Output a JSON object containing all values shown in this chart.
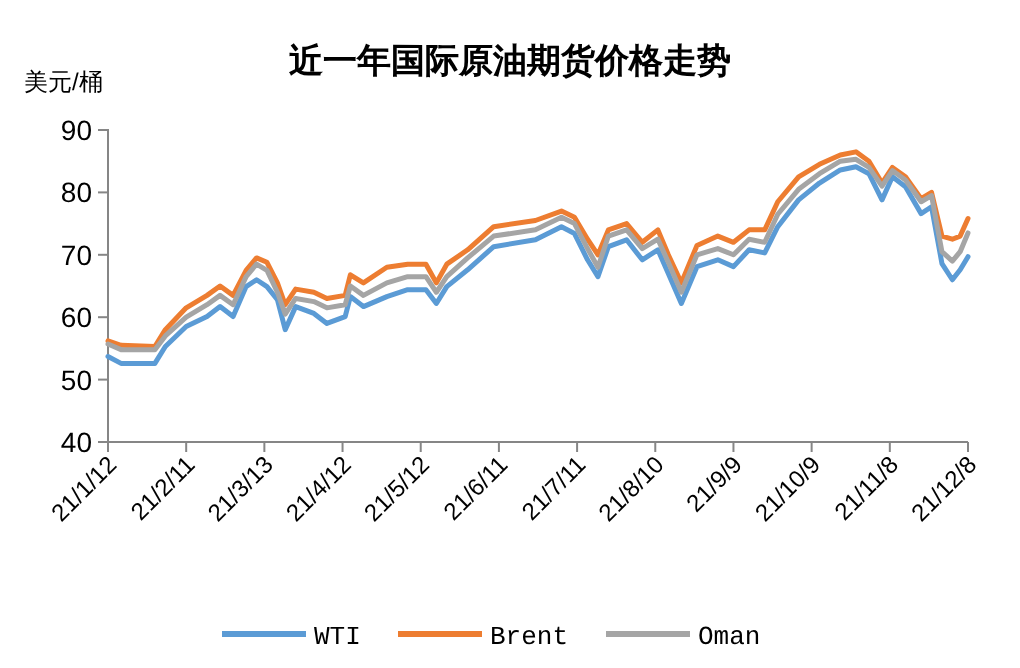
{
  "chart_data": {
    "type": "line",
    "title": "近一年国际原油期货价格走势",
    "ylabel": "美元/桶",
    "x": [
      "--01-12",
      "--01-17",
      "--01-30",
      "--02-03",
      "--02-11",
      "--02-19",
      "--02-24",
      "--03-01",
      "--03-06",
      "--03-10",
      "--03-14",
      "--03-18",
      "--03-21",
      "--03-25",
      "--04-01",
      "--04-06",
      "--04-13",
      "--04-15",
      "--04-20",
      "--04-29",
      "--05-07",
      "--05-14",
      "--05-18",
      "--05-22",
      "--05-30",
      "--06-09",
      "--06-25",
      "--07-05",
      "--07-10",
      "--07-15",
      "--07-19",
      "--07-23",
      "--07-30",
      "--08-05",
      "--08-11",
      "--08-15",
      "--08-20",
      "--08-26",
      "--09-03",
      "--09-09",
      "--09-15",
      "--09-21",
      "--09-26",
      "--10-04",
      "--10-12",
      "--10-20",
      "--10-26",
      "--10-31",
      "--11-05",
      "--11-09",
      "--11-14",
      "--11-20",
      "--11-24",
      "--11-28",
      "--12-02",
      "--12-05",
      "--12-08"
    ],
    "series": [
      {
        "name": "WTI",
        "color": "#5b9bd5",
        "values": [
          53.7,
          52.6,
          52.6,
          55.3,
          58.5,
          60.1,
          61.7,
          60.1,
          64.9,
          66,
          64.9,
          62.8,
          58,
          61.7,
          60.6,
          59,
          60.1,
          63.3,
          61.7,
          63.3,
          64.4,
          64.4,
          62.2,
          64.9,
          67.6,
          71.3,
          72.4,
          74.5,
          73.4,
          69.2,
          66.5,
          71.3,
          72.4,
          69.2,
          70.8,
          67,
          62.2,
          68.1,
          69.2,
          68.1,
          70.8,
          70.3,
          74.5,
          78.8,
          81.5,
          83.6,
          84.1,
          83,
          78.8,
          82.5,
          80.9,
          76.6,
          77.7,
          68.6,
          66,
          67.6,
          69.7
        ]
      },
      {
        "name": "Brent",
        "color": "#ed7d31",
        "values": [
          56.2,
          55.5,
          55.3,
          58,
          61.5,
          63.5,
          65,
          63.5,
          67.5,
          69.5,
          68.8,
          65.5,
          62,
          64.5,
          64,
          63,
          63.5,
          66.8,
          65.5,
          68,
          68.5,
          68.5,
          65.5,
          68.5,
          70.8,
          74.5,
          75.5,
          77,
          76,
          72.5,
          70,
          74,
          75,
          72,
          74,
          70,
          65.5,
          71.5,
          73,
          72,
          74,
          74,
          78.5,
          82.5,
          84.5,
          86,
          86.5,
          85,
          81.5,
          84,
          82.5,
          79,
          80,
          73,
          72.5,
          73,
          75.8
        ]
      },
      {
        "name": "Oman",
        "color": "#a5a5a5",
        "values": [
          55.7,
          54.8,
          54.8,
          57,
          60,
          62,
          63.5,
          62,
          66.5,
          68.5,
          67.5,
          64,
          60.5,
          63,
          62.5,
          61.5,
          62,
          65,
          63.5,
          65.5,
          66.5,
          66.5,
          64,
          66.5,
          69.5,
          73,
          74,
          76,
          75,
          71,
          68,
          73,
          74,
          71,
          72.5,
          68.8,
          64,
          70,
          71,
          70,
          72.5,
          72,
          76.5,
          80.5,
          83,
          85,
          85.3,
          84,
          81,
          83.5,
          82,
          78.5,
          79.5,
          70.5,
          69,
          70.5,
          73.5
        ]
      }
    ],
    "xlim": [
      "--01-12",
      "--12-08"
    ],
    "xticks": [
      {
        "value": "--01-12",
        "label": "21/1/12"
      },
      {
        "value": "--02-11",
        "label": "21/2/11"
      },
      {
        "value": "--03-13",
        "label": "21/3/13"
      },
      {
        "value": "--04-12",
        "label": "21/4/12"
      },
      {
        "value": "--05-12",
        "label": "21/5/12"
      },
      {
        "value": "--06-11",
        "label": "21/6/11"
      },
      {
        "value": "--07-11",
        "label": "21/7/11"
      },
      {
        "value": "--08-10",
        "label": "21/8/10"
      },
      {
        "value": "--09-09",
        "label": "21/9/9"
      },
      {
        "value": "--10-09",
        "label": "21/10/9"
      },
      {
        "value": "--11-08",
        "label": "21/11/8"
      },
      {
        "value": "--12-08",
        "label": "21/12/8"
      }
    ],
    "ylim": [
      40,
      90
    ],
    "yticks": [
      40,
      50,
      60,
      70,
      80,
      90
    ],
    "grid": false,
    "legend": "bottom",
    "marker": "none",
    "line_style": "solid"
  }
}
